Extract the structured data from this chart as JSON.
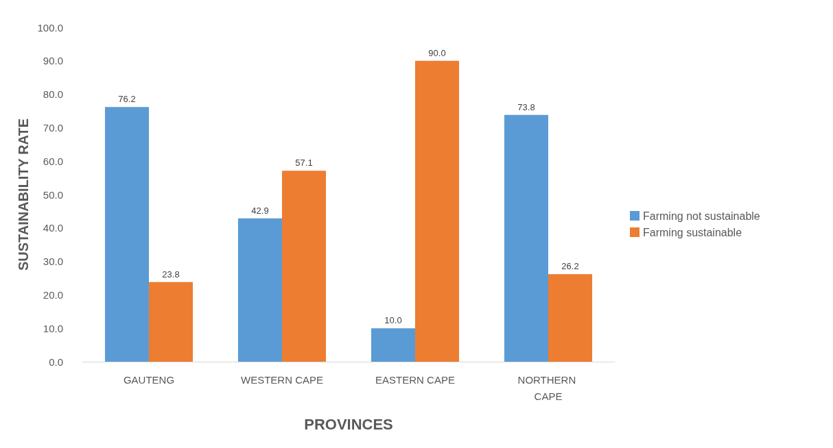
{
  "chart_data": {
    "type": "bar",
    "xlabel": "PROVINCES",
    "ylabel": "SUSTAINABILITY RATE",
    "categories": [
      "GAUTENG",
      "WESTERN CAPE",
      "EASTERN CAPE",
      "NORTHERN CAPE"
    ],
    "series": [
      {
        "name": "Farming not sustainable",
        "color": "#5b9bd5",
        "values": [
          76.2,
          42.9,
          10.0,
          73.8
        ],
        "value_labels": [
          "76.2",
          "42.9",
          "10.0",
          "73.8"
        ]
      },
      {
        "name": "Farming sustainable",
        "color": "#ed7d31",
        "values": [
          23.8,
          57.1,
          90.0,
          26.2
        ],
        "value_labels": [
          "23.8",
          "57.1",
          "90.0",
          "26.2"
        ]
      }
    ],
    "ylim": [
      0,
      100
    ],
    "yticks": [
      {
        "value": 0,
        "label": "0.0"
      },
      {
        "value": 10,
        "label": "10.0"
      },
      {
        "value": 20,
        "label": "20.0"
      },
      {
        "value": 30,
        "label": "30.0"
      },
      {
        "value": 40,
        "label": "40.0"
      },
      {
        "value": 50,
        "label": "50.0"
      },
      {
        "value": 60,
        "label": "60.0"
      },
      {
        "value": 70,
        "label": "70.0"
      },
      {
        "value": 80,
        "label": "80.0"
      },
      {
        "value": 90,
        "label": "90.0"
      },
      {
        "value": 100,
        "label": "100.0"
      }
    ],
    "grid": false,
    "legend": "right"
  }
}
